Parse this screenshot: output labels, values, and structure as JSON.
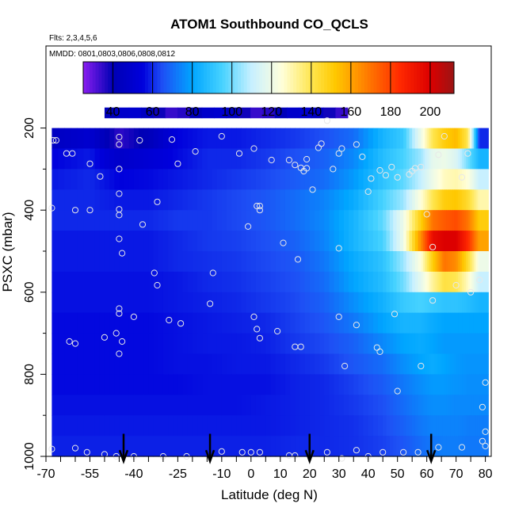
{
  "chart_data": {
    "type": "heatmap",
    "title": "ATOM1 Southbound CO_QCLS",
    "subtitle_flights": "Flts: 2,3,4,5,6",
    "subtitle_dates": "MMDD: 0801,0803,0806,0808,0812",
    "xlabel": "Latitude (deg N)",
    "ylabel": "PSXC (mbar)",
    "xlim": [
      -70,
      82
    ],
    "ylim": [
      1000,
      0
    ],
    "x_ticks": [
      "-70",
      "-55",
      "-40",
      "-25",
      "-10",
      "0",
      "10",
      "20",
      "30",
      "40",
      "50",
      "60",
      "70",
      "80"
    ],
    "y_ticks": [
      "200",
      "400",
      "600",
      "800",
      "1000"
    ],
    "colorbar": {
      "ticks": [
        "40",
        "60",
        "80",
        "100",
        "120",
        "140",
        "160",
        "180",
        "200"
      ],
      "min": 25,
      "max": 212,
      "stops": [
        {
          "v": 25,
          "c": "#8a1ef0"
        },
        {
          "v": 40,
          "c": "#0000b4"
        },
        {
          "v": 55,
          "c": "#0000dc"
        },
        {
          "v": 65,
          "c": "#1e50f5"
        },
        {
          "v": 80,
          "c": "#00a5ff"
        },
        {
          "v": 95,
          "c": "#46d2ff"
        },
        {
          "v": 110,
          "c": "#c8f0ff"
        },
        {
          "v": 125,
          "c": "#ffffdc"
        },
        {
          "v": 140,
          "c": "#ffe650"
        },
        {
          "v": 152,
          "c": "#ffc800"
        },
        {
          "v": 165,
          "c": "#ff8c00"
        },
        {
          "v": 185,
          "c": "#ff2800"
        },
        {
          "v": 200,
          "c": "#dc0000"
        },
        {
          "v": 212,
          "c": "#9b1414"
        }
      ]
    },
    "pressure_levels": [
      175,
      225,
      275,
      325,
      375,
      425,
      475,
      525,
      575,
      625,
      675,
      725,
      775,
      825,
      875,
      925,
      975
    ],
    "latitude_nodes": [
      -68,
      -55,
      -45,
      -35,
      -25,
      -15,
      -5,
      5,
      15,
      25,
      35,
      45,
      52,
      58,
      62,
      66,
      70,
      74,
      78,
      81
    ],
    "co_values_ppb": [
      [
        null,
        null,
        null,
        null,
        null,
        null,
        null,
        null,
        null,
        null,
        null,
        null,
        null,
        null,
        null,
        null,
        null,
        null,
        null,
        null
      ],
      [
        45,
        50,
        35,
        42,
        55,
        58,
        58,
        60,
        62,
        65,
        70,
        85,
        92,
        120,
        140,
        150,
        155,
        140,
        60,
        null
      ],
      [
        55,
        58,
        48,
        52,
        56,
        60,
        60,
        62,
        65,
        68,
        75,
        88,
        95,
        105,
        118,
        120,
        115,
        100,
        85,
        null
      ],
      [
        58,
        60,
        55,
        56,
        58,
        60,
        62,
        64,
        67,
        70,
        78,
        90,
        98,
        110,
        120,
        128,
        130,
        125,
        110,
        null
      ],
      [
        60,
        60,
        58,
        58,
        60,
        62,
        64,
        66,
        70,
        74,
        82,
        95,
        105,
        125,
        140,
        150,
        152,
        145,
        130,
        null
      ],
      [
        60,
        60,
        60,
        60,
        62,
        62,
        64,
        66,
        70,
        75,
        85,
        98,
        120,
        150,
        170,
        175,
        178,
        170,
        150,
        null
      ],
      [
        58,
        58,
        58,
        58,
        60,
        62,
        63,
        65,
        68,
        74,
        85,
        95,
        120,
        165,
        195,
        200,
        200,
        185,
        160,
        null
      ],
      [
        58,
        58,
        58,
        58,
        60,
        61,
        62,
        64,
        66,
        72,
        82,
        90,
        105,
        125,
        150,
        170,
        165,
        145,
        120,
        null
      ],
      [
        57,
        57,
        57,
        57,
        58,
        60,
        61,
        63,
        65,
        70,
        80,
        88,
        100,
        118,
        132,
        142,
        140,
        128,
        110,
        null
      ],
      [
        57,
        57,
        57,
        57,
        58,
        59,
        60,
        62,
        64,
        68,
        76,
        84,
        92,
        95,
        92,
        90,
        90,
        88,
        85,
        null
      ],
      [
        56,
        56,
        56,
        56,
        57,
        58,
        59,
        60,
        63,
        66,
        72,
        80,
        85,
        85,
        82,
        80,
        80,
        80,
        80,
        null
      ],
      [
        56,
        56,
        56,
        56,
        57,
        58,
        58,
        59,
        62,
        64,
        68,
        75,
        80,
        82,
        80,
        78,
        78,
        78,
        78,
        null
      ],
      [
        56,
        56,
        56,
        56,
        57,
        57,
        58,
        58,
        60,
        62,
        66,
        70,
        76,
        80,
        82,
        80,
        78,
        77,
        77,
        null
      ],
      [
        56,
        56,
        56,
        56,
        56,
        57,
        57,
        57,
        59,
        60,
        63,
        67,
        72,
        76,
        78,
        78,
        77,
        76,
        76,
        null
      ],
      [
        57,
        57,
        57,
        57,
        57,
        57,
        57,
        58,
        59,
        60,
        62,
        65,
        70,
        74,
        76,
        76,
        75,
        75,
        75,
        null
      ],
      [
        58,
        58,
        58,
        58,
        58,
        58,
        58,
        58,
        59,
        60,
        61,
        64,
        68,
        72,
        74,
        74,
        74,
        73,
        73,
        null
      ],
      [
        59,
        59,
        59,
        59,
        59,
        59,
        59,
        59,
        60,
        60,
        61,
        63,
        66,
        70,
        72,
        73,
        73,
        72,
        72,
        null
      ]
    ],
    "upper_band": {
      "lat_range": [
        -50,
        33
      ],
      "pressure_range": [
        150,
        175
      ],
      "value": 42
    },
    "sample_points": [
      [
        -67.5,
        230
      ],
      [
        -66.5,
        230
      ],
      [
        -63,
        262
      ],
      [
        -61,
        262
      ],
      [
        -55,
        287
      ],
      [
        -51.5,
        318
      ],
      [
        -45,
        222
      ],
      [
        -45,
        240
      ],
      [
        -38,
        230
      ],
      [
        -45,
        300
      ],
      [
        -45,
        360
      ],
      [
        -45,
        398
      ],
      [
        -45,
        412
      ],
      [
        -45,
        470
      ],
      [
        -44,
        505
      ],
      [
        -37,
        435
      ],
      [
        -33,
        553
      ],
      [
        -32,
        583
      ],
      [
        -32,
        380
      ],
      [
        -27,
        228
      ],
      [
        -25,
        287
      ],
      [
        -19,
        257
      ],
      [
        -10,
        220
      ],
      [
        -4,
        262
      ],
      [
        1,
        250
      ],
      [
        2,
        390
      ],
      [
        3,
        390
      ],
      [
        3,
        400
      ],
      [
        7,
        278
      ],
      [
        13,
        278
      ],
      [
        15,
        290
      ],
      [
        17,
        297
      ],
      [
        19,
        276
      ],
      [
        18,
        305
      ],
      [
        19,
        298
      ],
      [
        21,
        350
      ],
      [
        23,
        248
      ],
      [
        24,
        238
      ],
      [
        26,
        182
      ],
      [
        28,
        300
      ],
      [
        30,
        262
      ],
      [
        31,
        250
      ],
      [
        36,
        240
      ],
      [
        38,
        270
      ],
      [
        40,
        355
      ],
      [
        41,
        323
      ],
      [
        44,
        303
      ],
      [
        46,
        315
      ],
      [
        48,
        295
      ],
      [
        50,
        320
      ],
      [
        54,
        313
      ],
      [
        55,
        305
      ],
      [
        56,
        298
      ],
      [
        58,
        295
      ],
      [
        60,
        410
      ],
      [
        62,
        490
      ],
      [
        64,
        265
      ],
      [
        66,
        220
      ],
      [
        70,
        583
      ],
      [
        72,
        320
      ],
      [
        74,
        262
      ],
      [
        75,
        600
      ],
      [
        78,
        570
      ],
      [
        -68,
        395
      ],
      [
        -60,
        400
      ],
      [
        -55,
        400
      ],
      [
        -40,
        660
      ],
      [
        -45,
        640
      ],
      [
        -45,
        652
      ],
      [
        -46,
        700
      ],
      [
        -44,
        720
      ],
      [
        -45,
        750
      ],
      [
        -60,
        725
      ],
      [
        -62,
        720
      ],
      [
        -50,
        710
      ],
      [
        -28,
        668
      ],
      [
        -24,
        676
      ],
      [
        -14,
        628
      ],
      [
        -13,
        553
      ],
      [
        -1,
        440
      ],
      [
        1,
        660
      ],
      [
        2,
        690
      ],
      [
        3,
        712
      ],
      [
        9,
        695
      ],
      [
        15,
        733
      ],
      [
        17,
        733
      ],
      [
        16,
        520
      ],
      [
        11,
        480
      ],
      [
        30,
        493
      ],
      [
        30,
        660
      ],
      [
        36,
        680
      ],
      [
        43,
        735
      ],
      [
        49,
        653
      ],
      [
        32,
        780
      ],
      [
        44,
        745
      ],
      [
        58,
        780
      ],
      [
        62,
        620
      ],
      [
        50,
        841
      ],
      [
        80,
        820
      ],
      [
        79,
        880
      ],
      [
        80,
        940
      ],
      [
        79,
        963
      ],
      [
        -68,
        982
      ],
      [
        -60,
        980
      ],
      [
        -56,
        990
      ],
      [
        -50,
        995
      ],
      [
        -46,
        1000
      ],
      [
        -40,
        1000
      ],
      [
        -30,
        1000
      ],
      [
        -22,
        1000
      ],
      [
        -10,
        988
      ],
      [
        -3,
        990
      ],
      [
        0,
        990
      ],
      [
        3,
        990
      ],
      [
        13,
        998
      ],
      [
        15,
        998
      ],
      [
        26,
        990
      ],
      [
        31,
        1005
      ],
      [
        36,
        985
      ],
      [
        40,
        1000
      ],
      [
        45,
        990
      ],
      [
        52,
        990
      ],
      [
        57,
        990
      ],
      [
        64,
        978
      ],
      [
        72,
        978
      ],
      [
        80,
        975
      ]
    ],
    "arrows_lat": [
      -43.5,
      -14,
      20,
      61.5
    ]
  }
}
